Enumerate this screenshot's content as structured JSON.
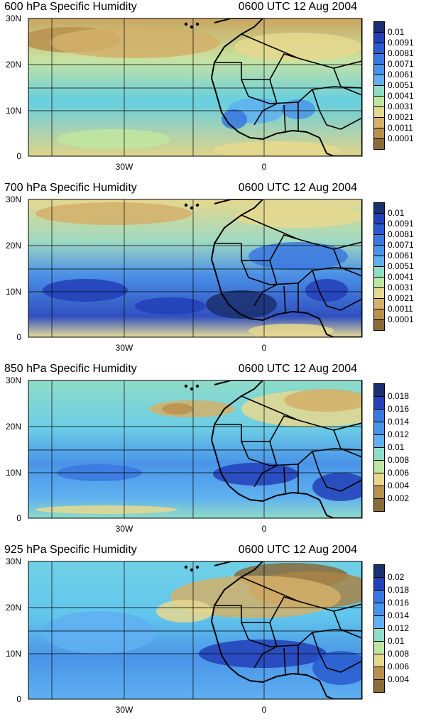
{
  "panels": [
    {
      "title": "600 hPa Specific Humidity",
      "time": "0600 UTC 12 Aug 2004",
      "colorbar_labels": [
        "0.01",
        "0.0091",
        "0.0081",
        "0.0071",
        "0.0061",
        "0.0051",
        "0.0041",
        "0.0031",
        "0.0021",
        "0.0011",
        "0.0001"
      ],
      "palette": "dry-north"
    },
    {
      "title": "700 hPa Specific Humidity",
      "time": "0600 UTC 12 Aug 2004",
      "colorbar_labels": [
        "0.01",
        "0.0091",
        "0.0081",
        "0.0071",
        "0.0061",
        "0.0051",
        "0.0041",
        "0.0031",
        "0.0021",
        "0.0011",
        "0.0001"
      ],
      "palette": "moist-band"
    },
    {
      "title": "850 hPa Specific Humidity",
      "time": "0600 UTC 12 Aug 2004",
      "colorbar_labels": [
        "0.018",
        "0.016",
        "0.014",
        "0.012",
        "0.01",
        "0.008",
        "0.006",
        "0.004",
        "0.002"
      ],
      "palette": "moist-south"
    },
    {
      "title": "925 hPa Specific Humidity",
      "time": "0600 UTC 12 Aug 2004",
      "colorbar_labels": [
        "0.02",
        "0.018",
        "0.016",
        "0.014",
        "0.012",
        "0.01",
        "0.008",
        "0.006",
        "0.004"
      ],
      "palette": "sahara-dry"
    }
  ],
  "y_ticks": [
    "30N",
    "20N",
    "10N",
    "0"
  ],
  "x_ticks": [
    "30W",
    "0"
  ],
  "colors": {
    "darkblue": "#1a2f6e",
    "blue": "#2340b8",
    "midblue": "#3a78e0",
    "lightblue": "#5fb0f0",
    "cyan": "#62d2e8",
    "paleteal": "#8fdcc8",
    "lightgreen": "#bfe6a0",
    "paleyellow": "#e6d88e",
    "tan": "#d4b06a",
    "brown": "#a88248",
    "darkbrown": "#8a6a38"
  }
}
